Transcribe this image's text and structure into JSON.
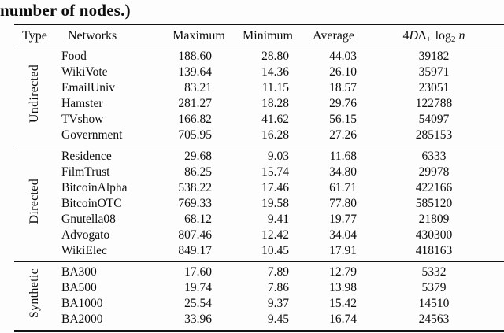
{
  "caption": "number of nodes.)",
  "table": {
    "headers": {
      "type": "Type",
      "networks": "Networks",
      "maximum": "Maximum",
      "minimum": "Minimum",
      "average": "Average",
      "metric": {
        "coef": "4",
        "D": "D",
        "delta": "Δ",
        "plus": "+",
        "log": "log",
        "two": "2",
        "n": "n"
      }
    },
    "groups": [
      {
        "label": "Undirected",
        "rows": [
          {
            "network": "Food",
            "maximum": "188.60",
            "minimum": "28.80",
            "average": "44.03",
            "metric": "39182"
          },
          {
            "network": "WikiVote",
            "maximum": "139.64",
            "minimum": "14.36",
            "average": "26.10",
            "metric": "35971"
          },
          {
            "network": "EmailUniv",
            "maximum": "83.21",
            "minimum": "11.15",
            "average": "18.57",
            "metric": "23051"
          },
          {
            "network": "Hamster",
            "maximum": "281.27",
            "minimum": "18.28",
            "average": "29.76",
            "metric": "122788"
          },
          {
            "network": "TVshow",
            "maximum": "166.82",
            "minimum": "41.62",
            "average": "56.15",
            "metric": "54097"
          },
          {
            "network": "Government",
            "maximum": "705.95",
            "minimum": "16.28",
            "average": "27.26",
            "metric": "285153"
          }
        ]
      },
      {
        "label": "Directed",
        "rows": [
          {
            "network": "Residence",
            "maximum": "29.68",
            "minimum": "9.03",
            "average": "11.68",
            "metric": "6333"
          },
          {
            "network": "FilmTrust",
            "maximum": "86.25",
            "minimum": "15.74",
            "average": "34.80",
            "metric": "29978"
          },
          {
            "network": "BitcoinAlpha",
            "maximum": "538.22",
            "minimum": "17.46",
            "average": "61.71",
            "metric": "422166"
          },
          {
            "network": "BitcoinOTC",
            "maximum": "769.33",
            "minimum": "19.58",
            "average": "77.80",
            "metric": "585120"
          },
          {
            "network": "Gnutella08",
            "maximum": "68.12",
            "minimum": "9.41",
            "average": "19.77",
            "metric": "21809"
          },
          {
            "network": "Advogato",
            "maximum": "807.46",
            "minimum": "12.42",
            "average": "34.04",
            "metric": "430300"
          },
          {
            "network": "WikiElec",
            "maximum": "849.17",
            "minimum": "10.45",
            "average": "17.91",
            "metric": "418163"
          }
        ]
      },
      {
        "label": "Synthetic",
        "rows": [
          {
            "network": "BA300",
            "maximum": "17.60",
            "minimum": "7.89",
            "average": "12.79",
            "metric": "5332"
          },
          {
            "network": "BA500",
            "maximum": "19.74",
            "minimum": "7.86",
            "average": "13.98",
            "metric": "5379"
          },
          {
            "network": "BA1000",
            "maximum": "25.54",
            "minimum": "9.37",
            "average": "15.42",
            "metric": "14510"
          },
          {
            "network": "BA2000",
            "maximum": "33.96",
            "minimum": "9.45",
            "average": "16.74",
            "metric": "24563"
          }
        ]
      }
    ]
  }
}
